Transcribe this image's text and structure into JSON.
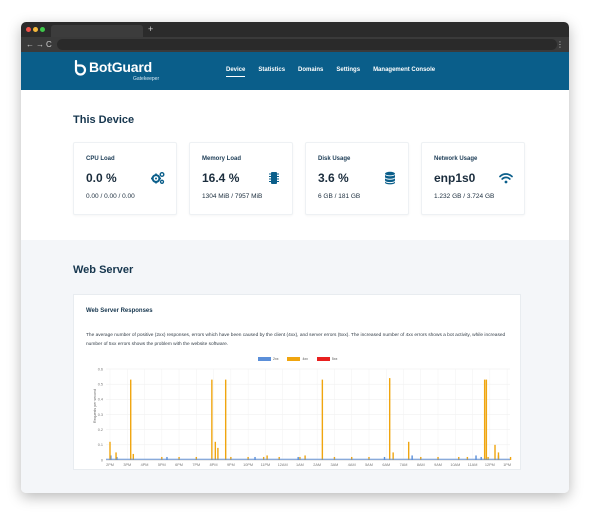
{
  "browser": {
    "new_tab_symbol": "+",
    "back": "←",
    "forward": "→",
    "reload": "C",
    "menu": "⋮"
  },
  "app": {
    "logo_name": "BotGuard",
    "logo_sub": "Gatekeeper",
    "nav": [
      {
        "label": "Device",
        "active": true
      },
      {
        "label": "Statistics",
        "active": false
      },
      {
        "label": "Domains",
        "active": false
      },
      {
        "label": "Settings",
        "active": false
      },
      {
        "label": "Management Console",
        "active": false
      }
    ]
  },
  "device": {
    "title": "This Device",
    "cards": [
      {
        "label": "CPU Load",
        "value": "0.0 %",
        "sub": "0.00 / 0.00 / 0.00",
        "icon": "gears-icon"
      },
      {
        "label": "Memory Load",
        "value": "16.4 %",
        "sub": "1304 MiB / 7957 MiB",
        "icon": "memory-icon"
      },
      {
        "label": "Disk Usage",
        "value": "3.6 %",
        "sub": "6 GB / 181 GB",
        "icon": "database-icon"
      },
      {
        "label": "Network Usage",
        "value": "enp1s0",
        "sub": "1.232 GB / 3.724 GB",
        "icon": "wifi-icon"
      }
    ],
    "accent": "#0a5e8a"
  },
  "webserver": {
    "title": "Web Server",
    "panel_title": "Web Server Responses",
    "description": "The average number of positive (2xx) responses, errors which have been caused by the client (4xx), and server errors (5xx). The increased number of 4xx errors shows a bot activity, while increased number of 5xx errors shows the problem with the website software."
  },
  "chart_data": {
    "type": "bar",
    "ylabel": "Requests per second",
    "ylim": [
      0,
      0.6
    ],
    "y_ticks": [
      "0",
      "0.1",
      "0.2",
      "0.3",
      "0.4",
      "0.5",
      "0.6"
    ],
    "x_tick_labels": [
      "2PM",
      "3PM",
      "4PM",
      "5PM",
      "6PM",
      "7PM",
      "8PM",
      "9PM",
      "10PM",
      "11PM",
      "12AM",
      "1AM",
      "2AM",
      "3AM",
      "4AM",
      "5AM",
      "6AM",
      "7AM",
      "8AM",
      "9AM",
      "10AM",
      "11AM",
      "12PM",
      "1PM"
    ],
    "legend_placement": "top-center",
    "series": [
      {
        "name": "2xx",
        "color": "#5b8fd9",
        "points": [
          [
            0.05,
            0.03
          ],
          [
            0.4,
            0.02
          ],
          [
            3.3,
            0.02
          ],
          [
            8.4,
            0.02
          ],
          [
            10.9,
            0.02
          ],
          [
            15.9,
            0.02
          ],
          [
            17.5,
            0.03
          ],
          [
            21.2,
            0.03
          ],
          [
            21.5,
            0.02
          ],
          [
            22.5,
            0.03
          ]
        ]
      },
      {
        "name": "4xx",
        "color": "#f0a50f",
        "points": [
          [
            0.0,
            0.12
          ],
          [
            0.35,
            0.05
          ],
          [
            1.2,
            0.53
          ],
          [
            1.35,
            0.04
          ],
          [
            3.0,
            0.02
          ],
          [
            4.0,
            0.02
          ],
          [
            5.0,
            0.02
          ],
          [
            5.9,
            0.53
          ],
          [
            6.1,
            0.12
          ],
          [
            6.25,
            0.08
          ],
          [
            6.7,
            0.53
          ],
          [
            7.0,
            0.02
          ],
          [
            8.0,
            0.02
          ],
          [
            8.9,
            0.02
          ],
          [
            9.1,
            0.03
          ],
          [
            9.8,
            0.02
          ],
          [
            11.0,
            0.02
          ],
          [
            11.3,
            0.03
          ],
          [
            12.3,
            0.53
          ],
          [
            13.0,
            0.02
          ],
          [
            14.0,
            0.02
          ],
          [
            15.0,
            0.02
          ],
          [
            16.2,
            0.54
          ],
          [
            16.4,
            0.05
          ],
          [
            17.3,
            0.12
          ],
          [
            18.0,
            0.02
          ],
          [
            19.0,
            0.02
          ],
          [
            20.2,
            0.02
          ],
          [
            20.7,
            0.02
          ],
          [
            21.7,
            0.53
          ],
          [
            21.8,
            0.53
          ],
          [
            21.9,
            0.02
          ],
          [
            22.3,
            0.1
          ],
          [
            22.5,
            0.05
          ],
          [
            23.2,
            0.02
          ]
        ]
      },
      {
        "name": "5xx",
        "color": "#e8201f",
        "points": []
      }
    ]
  }
}
